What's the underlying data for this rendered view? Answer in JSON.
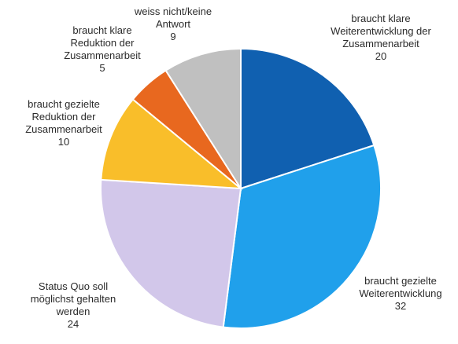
{
  "chart_data": {
    "type": "pie",
    "title": "",
    "start_angle_deg": 0,
    "direction": "clockwise",
    "slices": [
      {
        "label_lines": [
          "braucht klare",
          "Weiterentwicklung der",
          "Zusammenarbeit"
        ],
        "value": 20,
        "value_text": "20",
        "color": "#1060B0"
      },
      {
        "label_lines": [
          "braucht gezielte",
          "Weiterentwicklung"
        ],
        "value": 32,
        "value_text": "32",
        "color": "#20A0EB"
      },
      {
        "label_lines": [
          "Status Quo soll",
          "möglichst gehalten",
          "werden"
        ],
        "value": 24,
        "value_text": "24",
        "color": "#D2C7EA"
      },
      {
        "label_lines": [
          "braucht gezielte",
          "Reduktion der",
          "Zusammenarbeit"
        ],
        "value": 10,
        "value_text": "10",
        "color": "#F9BE2A"
      },
      {
        "label_lines": [
          "braucht klare",
          "Reduktion der",
          "Zusammenarbeit"
        ],
        "value": 5,
        "value_text": "5",
        "color": "#E8681F"
      },
      {
        "label_lines": [
          "weiss nicht/keine",
          "Antwort"
        ],
        "value": 9,
        "value_text": "9",
        "color": "#C0C0C0"
      }
    ]
  }
}
